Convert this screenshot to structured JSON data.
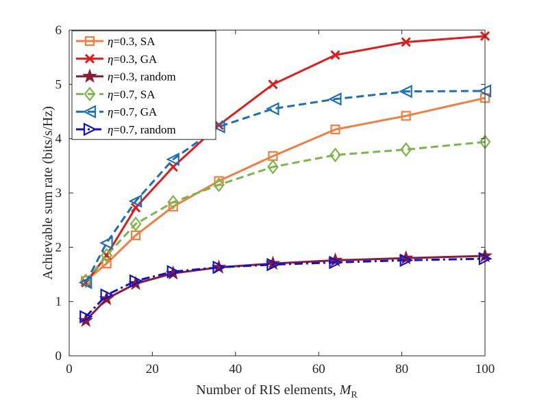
{
  "chart_data": {
    "type": "line",
    "title": "",
    "xlabel_prefix": "Number of RIS elements, ",
    "xlabel_symbol": "M",
    "xlabel_subscript": "R",
    "ylabel": "Achievable sum rate (bits/s/Hz)",
    "xlim": [
      0,
      100
    ],
    "ylim": [
      0,
      6
    ],
    "xticks": [
      0,
      20,
      40,
      60,
      80,
      100
    ],
    "yticks": [
      0,
      1,
      2,
      3,
      4,
      5,
      6
    ],
    "x": [
      4,
      9,
      16,
      25,
      36,
      49,
      64,
      81,
      100
    ],
    "legend_position": "top-left",
    "series": [
      {
        "name": "η=0.3, SA",
        "eta_symbol": "η",
        "eta_rest": "=0.3, SA",
        "color": "#F47C3C",
        "marker": "square",
        "dash": "solid",
        "values": [
          1.38,
          1.7,
          2.22,
          2.75,
          3.22,
          3.68,
          4.17,
          4.42,
          4.75
        ]
      },
      {
        "name": "η=0.3, GA",
        "eta_symbol": "η",
        "eta_rest": "=0.3, GA",
        "color": "#E21A1A",
        "marker": "x",
        "dash": "solid",
        "values": [
          1.35,
          1.85,
          2.73,
          3.48,
          4.25,
          5.0,
          5.54,
          5.78,
          5.89
        ]
      },
      {
        "name": "η=0.3, random",
        "eta_symbol": "η",
        "eta_rest": "=0.3, random",
        "color": "#8E1B34",
        "marker": "star",
        "dash": "solid",
        "values": [
          0.65,
          1.05,
          1.33,
          1.52,
          1.63,
          1.7,
          1.76,
          1.8,
          1.84
        ]
      },
      {
        "name": "η=0.7, SA",
        "eta_symbol": "η",
        "eta_rest": "=0.7, SA",
        "color": "#7AB648",
        "marker": "diamond",
        "dash": "dash",
        "values": [
          1.38,
          1.85,
          2.43,
          2.83,
          3.15,
          3.48,
          3.7,
          3.8,
          3.94
        ]
      },
      {
        "name": "η=0.7, GA",
        "eta_symbol": "η",
        "eta_rest": "=0.7, GA",
        "color": "#1A6FB8",
        "marker": "triangle-left",
        "dash": "dash",
        "values": [
          1.35,
          2.08,
          2.85,
          3.62,
          4.22,
          4.55,
          4.73,
          4.87,
          4.88
        ]
      },
      {
        "name": "η=0.7, random",
        "eta_symbol": "η",
        "eta_rest": "=0.7, random",
        "color": "#1010D0",
        "marker": "triangle-right",
        "dash": "dashdot",
        "values": [
          0.72,
          1.12,
          1.38,
          1.55,
          1.63,
          1.68,
          1.72,
          1.76,
          1.79
        ]
      }
    ]
  }
}
